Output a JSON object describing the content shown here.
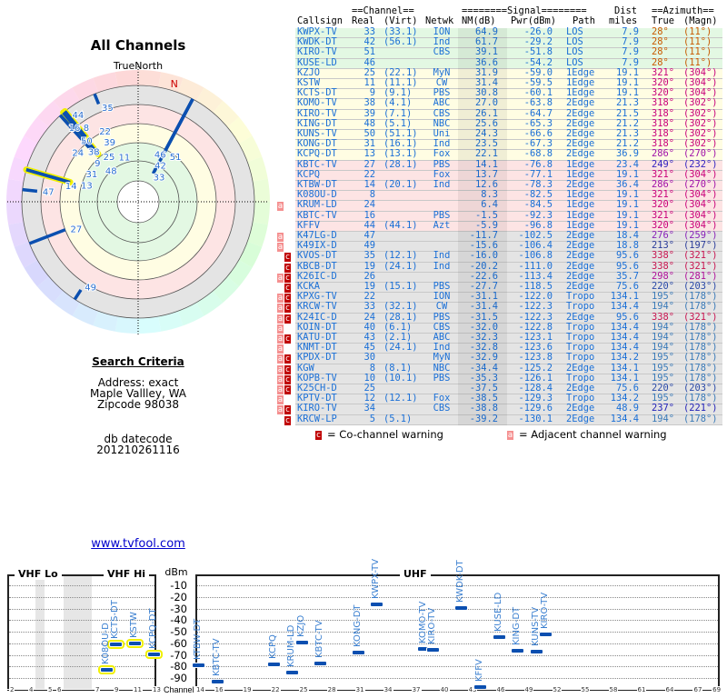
{
  "polar": {
    "title": "All Channels",
    "true_north_label": "TrueNorth",
    "magnetic_north_label": "N",
    "magnetic_declination_deg": 17
  },
  "search": {
    "heading": "Search Criteria",
    "address_mode": "Address: exact",
    "city": "Maple Vallley, WA",
    "zipcode": "Zipcode 98038",
    "db_label": "db datecode",
    "db_value": "201210261116"
  },
  "link": {
    "label": "www.tvfool.com"
  },
  "table": {
    "group_headers": {
      "channel": "==Channel==",
      "signal": "========Signal========",
      "dist": "Dist",
      "azimuth": "==Azimuth=="
    },
    "headers": {
      "callsign": "Callsign",
      "real": "Real",
      "virt": "(Virt)",
      "netwk": "Netwk",
      "nm": "NM(dB)",
      "pwr": "Pwr(dBm)",
      "path": "Path",
      "dist": "miles",
      "true": "True",
      "magn": "(Magn)"
    },
    "zone_colors": {
      "green": "#e3f8e3",
      "yellow": "#fffde3",
      "pink": "#fde4e4",
      "gray": "#e4e4e4"
    },
    "az_colors": {
      "28": "#c85a00",
      "321": "#c8007a",
      "320": "#c8007a",
      "318": "#c8007a",
      "286": "#a010a8",
      "249": "#3322c0",
      "276": "#8a22b8",
      "213": "#2a3c9a",
      "338": "#c81450",
      "298": "#b0109a",
      "220": "#2a4aa8",
      "195": "#3a7ab8",
      "194": "#3a7ab8",
      "237": "#2222b8"
    },
    "rows": [
      {
        "callsign": "KWPX-TV",
        "real": "33",
        "virt": "(33.1)",
        "netwk": "ION",
        "nm": "64.9",
        "pwr": "-26.0",
        "path": "LOS",
        "dist": "7.9",
        "true": "28°",
        "magn": "(11°)",
        "zone": "green",
        "adj": false,
        "co": false
      },
      {
        "callsign": "KWDK-DT",
        "real": "42",
        "virt": "(56.1)",
        "netwk": "Ind",
        "nm": "61.7",
        "pwr": "-29.2",
        "path": "LOS",
        "dist": "7.9",
        "true": "28°",
        "magn": "(11°)",
        "zone": "green",
        "adj": false,
        "co": false
      },
      {
        "callsign": "KIRO-TV",
        "real": "51",
        "virt": "",
        "netwk": "CBS",
        "nm": "39.1",
        "pwr": "-51.8",
        "path": "LOS",
        "dist": "7.9",
        "true": "28°",
        "magn": "(11°)",
        "zone": "green",
        "adj": false,
        "co": false
      },
      {
        "callsign": "KUSE-LD",
        "real": "46",
        "virt": "",
        "netwk": "",
        "nm": "36.6",
        "pwr": "-54.2",
        "path": "LOS",
        "dist": "7.9",
        "true": "28°",
        "magn": "(11°)",
        "zone": "green",
        "adj": false,
        "co": false
      },
      {
        "callsign": "KZJO",
        "real": "25",
        "virt": "(22.1)",
        "netwk": "MyN",
        "nm": "31.9",
        "pwr": "-59.0",
        "path": "1Edge",
        "dist": "19.1",
        "true": "321°",
        "magn": "(304°)",
        "zone": "yellow",
        "adj": false,
        "co": false
      },
      {
        "callsign": "KSTW",
        "real": "11",
        "virt": "(11.1)",
        "netwk": "CW",
        "nm": "31.4",
        "pwr": "-59.5",
        "path": "1Edge",
        "dist": "19.1",
        "true": "320°",
        "magn": "(304°)",
        "zone": "yellow",
        "adj": false,
        "co": false
      },
      {
        "callsign": "KCTS-DT",
        "real": "9",
        "virt": "(9.1)",
        "netwk": "PBS",
        "nm": "30.8",
        "pwr": "-60.1",
        "path": "1Edge",
        "dist": "19.1",
        "true": "320°",
        "magn": "(304°)",
        "zone": "yellow",
        "adj": false,
        "co": false
      },
      {
        "callsign": "KOMO-TV",
        "real": "38",
        "virt": "(4.1)",
        "netwk": "ABC",
        "nm": "27.0",
        "pwr": "-63.8",
        "path": "2Edge",
        "dist": "21.3",
        "true": "318°",
        "magn": "(302°)",
        "zone": "yellow",
        "adj": false,
        "co": false
      },
      {
        "callsign": "KIRO-TV",
        "real": "39",
        "virt": "(7.1)",
        "netwk": "CBS",
        "nm": "26.1",
        "pwr": "-64.7",
        "path": "2Edge",
        "dist": "21.5",
        "true": "318°",
        "magn": "(302°)",
        "zone": "yellow",
        "adj": false,
        "co": false
      },
      {
        "callsign": "KING-DT",
        "real": "48",
        "virt": "(5.1)",
        "netwk": "NBC",
        "nm": "25.6",
        "pwr": "-65.3",
        "path": "2Edge",
        "dist": "21.2",
        "true": "318°",
        "magn": "(302°)",
        "zone": "yellow",
        "adj": false,
        "co": false
      },
      {
        "callsign": "KUNS-TV",
        "real": "50",
        "virt": "(51.1)",
        "netwk": "Uni",
        "nm": "24.3",
        "pwr": "-66.6",
        "path": "2Edge",
        "dist": "21.3",
        "true": "318°",
        "magn": "(302°)",
        "zone": "yellow",
        "adj": false,
        "co": false
      },
      {
        "callsign": "KONG-DT",
        "real": "31",
        "virt": "(16.1)",
        "netwk": "Ind",
        "nm": "23.5",
        "pwr": "-67.3",
        "path": "2Edge",
        "dist": "21.2",
        "true": "318°",
        "magn": "(302°)",
        "zone": "yellow",
        "adj": false,
        "co": false
      },
      {
        "callsign": "KCPQ-DT",
        "real": "13",
        "virt": "(13.1)",
        "netwk": "Fox",
        "nm": "22.1",
        "pwr": "-68.8",
        "path": "2Edge",
        "dist": "36.9",
        "true": "286°",
        "magn": "(270°)",
        "zone": "yellow",
        "adj": false,
        "co": false
      },
      {
        "callsign": "KBTC-TV",
        "real": "27",
        "virt": "(28.1)",
        "netwk": "PBS",
        "nm": "14.1",
        "pwr": "-76.8",
        "path": "1Edge",
        "dist": "23.4",
        "true": "249°",
        "magn": "(232°)",
        "zone": "pink",
        "adj": false,
        "co": false
      },
      {
        "callsign": "KCPQ",
        "real": "22",
        "virt": "",
        "netwk": "Fox",
        "nm": "13.7",
        "pwr": "-77.1",
        "path": "1Edge",
        "dist": "19.1",
        "true": "321°",
        "magn": "(304°)",
        "zone": "pink",
        "adj": false,
        "co": false
      },
      {
        "callsign": "KTBW-DT",
        "real": "14",
        "virt": "(20.1)",
        "netwk": "Ind",
        "nm": "12.6",
        "pwr": "-78.3",
        "path": "2Edge",
        "dist": "36.4",
        "true": "286°",
        "magn": "(270°)",
        "zone": "pink",
        "adj": false,
        "co": false
      },
      {
        "callsign": "K08OU-D",
        "real": "8",
        "virt": "",
        "netwk": "",
        "nm": "8.3",
        "pwr": "-82.5",
        "path": "1Edge",
        "dist": "19.1",
        "true": "321°",
        "magn": "(304°)",
        "zone": "pink",
        "adj": false,
        "co": false
      },
      {
        "callsign": "KRUM-LD",
        "real": "24",
        "virt": "",
        "netwk": "",
        "nm": "6.4",
        "pwr": "-84.5",
        "path": "1Edge",
        "dist": "19.1",
        "true": "320°",
        "magn": "(304°)",
        "zone": "pink",
        "adj": true,
        "co": false
      },
      {
        "callsign": "KBTC-TV",
        "real": "16",
        "virt": "",
        "netwk": "PBS",
        "nm": "-1.5",
        "pwr": "-92.3",
        "path": "1Edge",
        "dist": "19.1",
        "true": "321°",
        "magn": "(304°)",
        "zone": "pink",
        "adj": false,
        "co": false
      },
      {
        "callsign": "KFFV",
        "real": "44",
        "virt": "(44.1)",
        "netwk": "Azt",
        "nm": "-5.9",
        "pwr": "-96.8",
        "path": "1Edge",
        "dist": "19.1",
        "true": "320°",
        "magn": "(304°)",
        "zone": "pink",
        "adj": false,
        "co": false
      },
      {
        "callsign": "K47LG-D",
        "real": "47",
        "virt": "",
        "netwk": "",
        "nm": "-11.7",
        "pwr": "-102.5",
        "path": "2Edge",
        "dist": "18.4",
        "true": "276°",
        "magn": "(259°)",
        "zone": "gray",
        "adj": true,
        "co": false
      },
      {
        "callsign": "K49IX-D",
        "real": "49",
        "virt": "",
        "netwk": "",
        "nm": "-15.6",
        "pwr": "-106.4",
        "path": "2Edge",
        "dist": "18.8",
        "true": "213°",
        "magn": "(197°)",
        "zone": "gray",
        "adj": true,
        "co": false
      },
      {
        "callsign": "KVOS-DT",
        "real": "35",
        "virt": "(12.1)",
        "netwk": "Ind",
        "nm": "-16.0",
        "pwr": "-106.8",
        "path": "2Edge",
        "dist": "95.6",
        "true": "338°",
        "magn": "(321°)",
        "zone": "gray",
        "adj": false,
        "co": true
      },
      {
        "callsign": "KBCB-DT",
        "real": "19",
        "virt": "(24.1)",
        "netwk": "Ind",
        "nm": "-20.2",
        "pwr": "-111.0",
        "path": "2Edge",
        "dist": "95.6",
        "true": "338°",
        "magn": "(321°)",
        "zone": "gray",
        "adj": false,
        "co": true
      },
      {
        "callsign": "K26IC-D",
        "real": "26",
        "virt": "",
        "netwk": "",
        "nm": "-22.6",
        "pwr": "-113.4",
        "path": "2Edge",
        "dist": "35.7",
        "true": "298°",
        "magn": "(281°)",
        "zone": "gray",
        "adj": true,
        "co": true
      },
      {
        "callsign": "KCKA",
        "real": "19",
        "virt": "(15.1)",
        "netwk": "PBS",
        "nm": "-27.7",
        "pwr": "-118.5",
        "path": "2Edge",
        "dist": "75.6",
        "true": "220°",
        "magn": "(203°)",
        "zone": "gray",
        "adj": false,
        "co": true
      },
      {
        "callsign": "KPXG-TV",
        "real": "22",
        "virt": "",
        "netwk": "ION",
        "nm": "-31.1",
        "pwr": "-122.0",
        "path": "Tropo",
        "dist": "134.1",
        "true": "195°",
        "magn": "(178°)",
        "zone": "gray",
        "adj": true,
        "co": true
      },
      {
        "callsign": "KRCW-TV",
        "real": "33",
        "virt": "(32.1)",
        "netwk": "CW",
        "nm": "-31.4",
        "pwr": "-122.3",
        "path": "Tropo",
        "dist": "134.4",
        "true": "194°",
        "magn": "(178°)",
        "zone": "gray",
        "adj": true,
        "co": true
      },
      {
        "callsign": "K24IC-D",
        "real": "24",
        "virt": "(28.1)",
        "netwk": "PBS",
        "nm": "-31.5",
        "pwr": "-122.3",
        "path": "2Edge",
        "dist": "95.6",
        "true": "338°",
        "magn": "(321°)",
        "zone": "gray",
        "adj": true,
        "co": true
      },
      {
        "callsign": "KOIN-DT",
        "real": "40",
        "virt": "(6.1)",
        "netwk": "CBS",
        "nm": "-32.0",
        "pwr": "-122.8",
        "path": "Tropo",
        "dist": "134.4",
        "true": "194°",
        "magn": "(178°)",
        "zone": "gray",
        "adj": true,
        "co": false
      },
      {
        "callsign": "KATU-DT",
        "real": "43",
        "virt": "(2.1)",
        "netwk": "ABC",
        "nm": "-32.3",
        "pwr": "-123.1",
        "path": "Tropo",
        "dist": "134.4",
        "true": "194°",
        "magn": "(178°)",
        "zone": "gray",
        "adj": true,
        "co": true
      },
      {
        "callsign": "KNMT-DT",
        "real": "45",
        "virt": "(24.1)",
        "netwk": "Ind",
        "nm": "-32.8",
        "pwr": "-123.6",
        "path": "Tropo",
        "dist": "134.4",
        "true": "194°",
        "magn": "(178°)",
        "zone": "gray",
        "adj": true,
        "co": false
      },
      {
        "callsign": "KPDX-DT",
        "real": "30",
        "virt": "",
        "netwk": "MyN",
        "nm": "-32.9",
        "pwr": "-123.8",
        "path": "Tropo",
        "dist": "134.2",
        "true": "195°",
        "magn": "(178°)",
        "zone": "gray",
        "adj": true,
        "co": true
      },
      {
        "callsign": "KGW",
        "real": "8",
        "virt": "(8.1)",
        "netwk": "NBC",
        "nm": "-34.4",
        "pwr": "-125.2",
        "path": "2Edge",
        "dist": "134.1",
        "true": "195°",
        "magn": "(178°)",
        "zone": "gray",
        "adj": true,
        "co": true
      },
      {
        "callsign": "KOPB-TV",
        "real": "10",
        "virt": "(10.1)",
        "netwk": "PBS",
        "nm": "-35.3",
        "pwr": "-126.1",
        "path": "Tropo",
        "dist": "134.1",
        "true": "195°",
        "magn": "(178°)",
        "zone": "gray",
        "adj": true,
        "co": true
      },
      {
        "callsign": "K25CH-D",
        "real": "25",
        "virt": "",
        "netwk": "",
        "nm": "-37.5",
        "pwr": "-128.4",
        "path": "2Edge",
        "dist": "75.6",
        "true": "220°",
        "magn": "(203°)",
        "zone": "gray",
        "adj": true,
        "co": true
      },
      {
        "callsign": "KPTV-DT",
        "real": "12",
        "virt": "(12.1)",
        "netwk": "Fox",
        "nm": "-38.5",
        "pwr": "-129.3",
        "path": "Tropo",
        "dist": "134.2",
        "true": "195°",
        "magn": "(178°)",
        "zone": "gray",
        "adj": true,
        "co": false
      },
      {
        "callsign": "KIRO-TV",
        "real": "34",
        "virt": "",
        "netwk": "CBS",
        "nm": "-38.8",
        "pwr": "-129.6",
        "path": "2Edge",
        "dist": "48.9",
        "true": "237°",
        "magn": "(221°)",
        "zone": "gray",
        "adj": true,
        "co": true
      },
      {
        "callsign": "KRCW-LP",
        "real": "5",
        "virt": "(5.1)",
        "netwk": "",
        "nm": "-39.2",
        "pwr": "-130.1",
        "path": "2Edge",
        "dist": "134.4",
        "true": "194°",
        "magn": "(178°)",
        "zone": "gray",
        "adj": false,
        "co": true
      }
    ]
  },
  "legend": {
    "co_flag": "c",
    "co_label": "= Co-channel warning",
    "adj_flag": "a",
    "adj_label": "= Adjacent channel warning"
  },
  "spectrum": {
    "vhf_lo_label": "VHF Lo",
    "vhf_hi_label": "VHF Hi",
    "uhf_label": "UHF",
    "y_unit": "dBm",
    "channel_label": "Channel",
    "y_ticks": [
      "-10",
      "-20",
      "-30",
      "-40",
      "-50",
      "-60",
      "-70",
      "-80",
      "-90"
    ],
    "vhf_ticks": [
      "2",
      "4",
      "5",
      "6",
      "7",
      "9",
      "11",
      "13"
    ],
    "uhf_ticks": [
      "14",
      "16",
      "19",
      "22",
      "25",
      "28",
      "31",
      "34",
      "37",
      "40",
      "43",
      "46",
      "49",
      "52",
      "55",
      "58",
      "61",
      "64",
      "67",
      "69"
    ]
  }
}
